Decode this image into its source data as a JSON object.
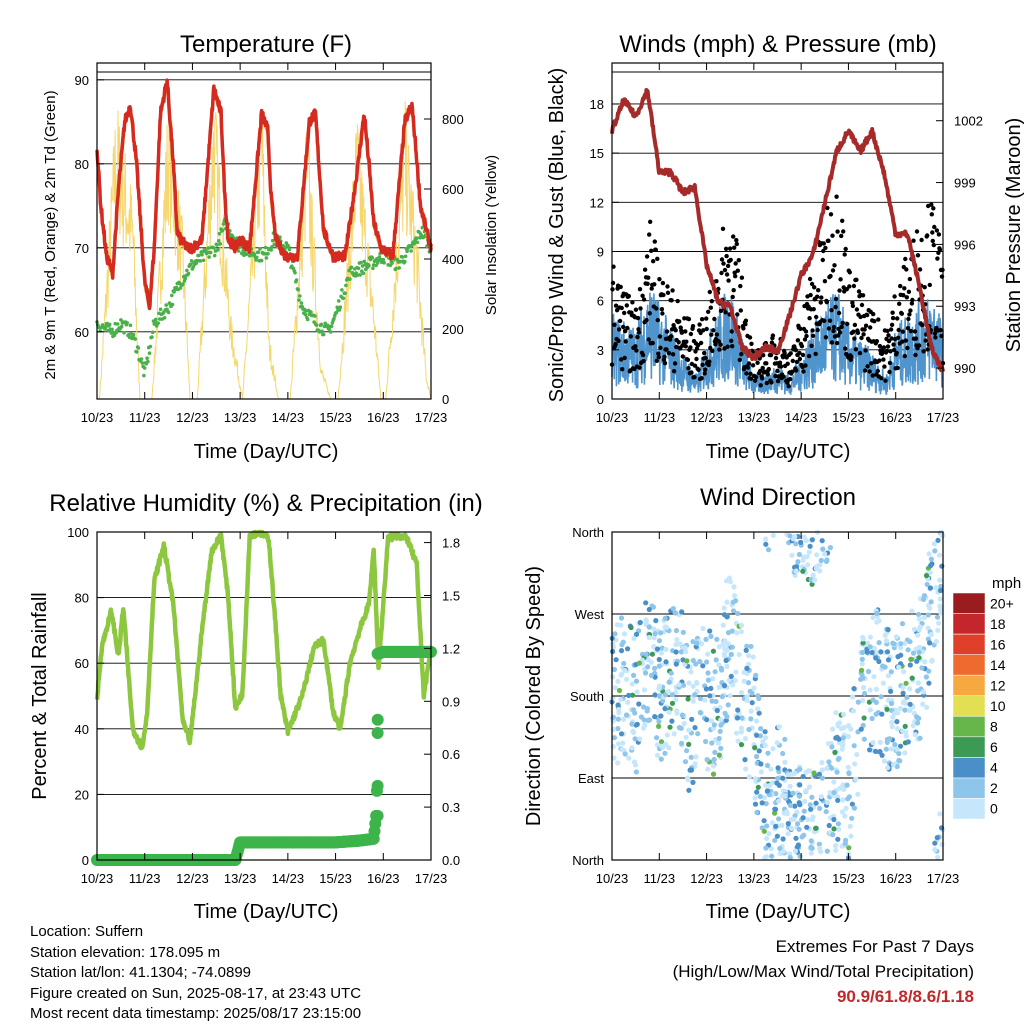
{
  "panels": {
    "temperature": {
      "title": "Temperature (F)",
      "ylabel": "2m & 9m T (Red, Orange) & 2m Td (Green)",
      "y2label": "Solar Insolation (Yellow)",
      "xlabel": "Time (Day/UTC)"
    },
    "winds": {
      "title": "Winds (mph) & Pressure (mb)",
      "ylabel": "Sonic/Prop Wind & Gust (Blue, Black)",
      "y2label": "Station Pressure (Maroon)",
      "xlabel": "Time (Day/UTC)"
    },
    "humidity": {
      "title": "Relative Humidity (%) & Precipitation (in)",
      "ylabel": "Percent & Total Rainfall",
      "xlabel": "Time (Day/UTC)"
    },
    "direction": {
      "title": "Wind Direction",
      "ylabel": "Direction (Colored By Speed)",
      "xlabel": "Time (Day/UTC)",
      "colorbar_title": "mph"
    }
  },
  "station": {
    "location": "Location: Suffern",
    "elevation": "Station elevation: 178.095 m",
    "latlon": "Station lat/lon: 41.1304; -74.0899",
    "created": "Figure created on Sun, 2025-08-17, at 23:43 UTC",
    "recent": "Most recent data timestamp: 2025/08/17 23:15:00"
  },
  "extremes": {
    "title": "Extremes For Past 7 Days",
    "subtitle": "(High/Low/Max Wind/Total Precipitation)",
    "values": "90.9/61.8/8.6/1.18"
  },
  "colors": {
    "temp_2m": "#d42a20",
    "temp_9m": "#f09a30",
    "dewpoint": "#4ab04a",
    "insolation": "#f5d76e",
    "wind": "#4f94cd",
    "gust": "#000000",
    "pressure": "#a52a2a",
    "rh": "#8dc63f",
    "precip": "#3cb44b"
  },
  "chart_data": [
    {
      "id": "temperature",
      "type": "line",
      "x_ticks": [
        "10/23",
        "11/23",
        "12/23",
        "13/23",
        "14/23",
        "15/23",
        "16/23",
        "17/23"
      ],
      "y_ticks": [
        60,
        70,
        80,
        90
      ],
      "ylim": [
        52,
        92
      ],
      "y2_ticks": [
        0,
        200,
        400,
        600,
        800
      ],
      "y2lim": [
        0,
        960
      ],
      "series": [
        {
          "key": "temp",
          "x": [
            0,
            0.08,
            0.2,
            0.33,
            0.45,
            0.58,
            0.7,
            0.83,
            0.95,
            1,
            1.1,
            1.2,
            1.33,
            1.47,
            1.6,
            1.68,
            1.75,
            1.9,
            2,
            2.2,
            2.45,
            2.6,
            2.68,
            2.75,
            2.9,
            3,
            3.2,
            3.45,
            3.58,
            3.65,
            3.75,
            3.95,
            4.2,
            4.45,
            4.58,
            4.65,
            4.75,
            4.95,
            5.2,
            5.45,
            5.6,
            5.7,
            5.8,
            5.95,
            6.2,
            6.45,
            6.6,
            6.68,
            6.78,
            6.95,
            7
          ],
          "y": [
            82,
            75,
            69,
            67,
            77,
            85,
            87,
            80,
            70,
            66,
            63,
            70,
            86,
            90,
            80,
            72,
            71,
            70,
            70,
            71,
            89,
            86,
            76,
            71,
            70,
            71,
            70,
            86,
            84,
            76,
            71,
            69,
            69,
            85,
            86,
            80,
            72,
            69,
            69,
            79,
            86,
            80,
            73,
            70,
            69,
            85,
            87,
            82,
            75,
            71,
            70
          ]
        },
        {
          "key": "dewpoint",
          "x": [
            0,
            0.3,
            0.5,
            0.7,
            0.85,
            1,
            1.2,
            1.5,
            1.75,
            2,
            2.5,
            2.7,
            3,
            3.5,
            3.7,
            4,
            4.3,
            4.6,
            4.85,
            5,
            5.3,
            5.7,
            6,
            6.3,
            6.6,
            6.8,
            7
          ],
          "y": [
            61,
            60,
            61,
            60,
            58,
            55,
            61,
            63,
            66,
            68,
            70,
            73,
            70,
            69,
            71,
            70,
            63,
            61,
            60,
            62,
            67,
            68,
            69,
            68,
            70,
            72,
            70
          ]
        },
        {
          "key": "insolation",
          "x": [
            0,
            0.05,
            0.4,
            0.75,
            0.9,
            1,
            1.15,
            1.5,
            1.8,
            1.95,
            2.1,
            2.45,
            2.8,
            3.05,
            3.45,
            3.6,
            3.8,
            4.05,
            4.4,
            4.7,
            4.9,
            5.05,
            5.45,
            5.8,
            5.95,
            6.05,
            6.45,
            6.7,
            6.9,
            7
          ],
          "y": [
            0,
            0,
            880,
            600,
            0,
            0,
            0,
            900,
            500,
            0,
            0,
            930,
            250,
            0,
            940,
            200,
            0,
            0,
            850,
            100,
            0,
            0,
            850,
            300,
            0,
            0,
            880,
            500,
            80,
            0
          ]
        }
      ]
    },
    {
      "id": "winds",
      "type": "scatter",
      "x_ticks": [
        "10/23",
        "11/23",
        "12/23",
        "13/23",
        "14/23",
        "15/23",
        "16/23",
        "17/23"
      ],
      "y_ticks": [
        0,
        3,
        6,
        9,
        12,
        15,
        18
      ],
      "ylim": [
        0,
        20.5
      ],
      "y2_ticks": [
        990,
        993,
        996,
        999,
        1002
      ],
      "y2lim": [
        988.5,
        1004.8
      ],
      "series": [
        {
          "key": "wind",
          "x": [
            0,
            0.5,
            0.8,
            1,
            1.5,
            1.8,
            2,
            2.5,
            2.7,
            3,
            3.5,
            3.8,
            4,
            4.5,
            4.8,
            5,
            5.5,
            5.8,
            6,
            6.5,
            6.8,
            7
          ],
          "y": [
            3.5,
            3,
            5,
            4,
            2,
            1,
            2.5,
            5,
            3,
            1,
            1.5,
            1,
            2,
            4,
            4.5,
            3,
            2,
            1,
            3,
            4,
            4.5,
            3
          ]
        },
        {
          "key": "gust",
          "x": [
            0,
            0.5,
            0.8,
            1,
            1.5,
            1.8,
            2,
            2.5,
            2.7,
            3,
            3.5,
            3.8,
            4,
            4.5,
            4.8,
            5,
            5.5,
            5.8,
            6,
            6.5,
            6.8,
            7
          ],
          "y": [
            6,
            4,
            8,
            6,
            4,
            3,
            4,
            9,
            6,
            2,
            3,
            2,
            4,
            8,
            10,
            6,
            4,
            3,
            5,
            8,
            9,
            6
          ]
        },
        {
          "key": "pressure",
          "x": [
            0,
            0.25,
            0.5,
            0.75,
            1,
            1.25,
            1.5,
            1.75,
            2,
            2.25,
            2.5,
            2.75,
            3,
            3.25,
            3.5,
            3.75,
            4,
            4.25,
            4.5,
            4.75,
            5,
            5.25,
            5.5,
            5.75,
            6,
            6.25,
            6.5,
            6.75,
            7
          ],
          "y": [
            1001.5,
            1003,
            1002.2,
            1003.5,
            999.5,
            999.5,
            998.5,
            998.8,
            995,
            993.2,
            993,
            991,
            990.5,
            991,
            990.8,
            992.5,
            994.5,
            995.5,
            998,
            1000.5,
            1001.5,
            1000.5,
            1001.5,
            999.5,
            996.5,
            996.5,
            994,
            991,
            989.8
          ]
        }
      ]
    },
    {
      "id": "humidity",
      "type": "line",
      "x_ticks": [
        "10/23",
        "11/23",
        "12/23",
        "13/23",
        "14/23",
        "15/23",
        "16/23",
        "17/23"
      ],
      "y_ticks": [
        0,
        20,
        40,
        60,
        80,
        100
      ],
      "ylim": [
        0,
        100
      ],
      "y2_ticks": [
        "0.0",
        "0.3",
        "0.6",
        "0.9",
        "1.2",
        "1.5",
        "1.8"
      ],
      "y2lim": [
        0,
        1.86
      ],
      "series": [
        {
          "key": "rh",
          "x": [
            0,
            0.1,
            0.3,
            0.45,
            0.55,
            0.75,
            0.95,
            1.05,
            1.2,
            1.4,
            1.6,
            1.8,
            1.95,
            2.2,
            2.4,
            2.6,
            2.75,
            2.9,
            3.05,
            3.2,
            3.4,
            3.6,
            3.75,
            3.85,
            4,
            4.3,
            4.55,
            4.75,
            4.95,
            5.1,
            5.3,
            5.5,
            5.7,
            5.8,
            5.9,
            6.1,
            6.3,
            6.5,
            6.7,
            6.85,
            7
          ],
          "y": [
            49,
            65,
            76,
            62,
            77,
            40,
            34,
            45,
            85,
            96,
            78,
            42,
            36,
            70,
            94,
            99,
            80,
            46,
            51,
            99,
            100,
            98,
            70,
            50,
            39,
            50,
            65,
            67,
            45,
            40,
            60,
            70,
            78,
            95,
            58,
            98,
            99,
            98,
            90,
            50,
            65
          ]
        },
        {
          "key": "precip",
          "x": [
            0,
            0.5,
            1,
            1.5,
            2,
            2.5,
            2.9,
            3,
            3.5,
            4,
            4.5,
            5,
            5.5,
            5.8,
            5.85,
            5.87,
            5.88,
            5.9,
            6,
            6.5,
            7
          ],
          "y": [
            0,
            0,
            0,
            0,
            0,
            0,
            0,
            0.1,
            0.1,
            0.1,
            0.1,
            0.1,
            0.11,
            0.12,
            0.25,
            0.42,
            0.72,
            1.17,
            1.18,
            1.18,
            1.18
          ]
        }
      ]
    },
    {
      "id": "direction",
      "type": "scatter",
      "x_ticks": [
        "10/23",
        "11/23",
        "12/23",
        "13/23",
        "14/23",
        "15/23",
        "16/23",
        "17/23"
      ],
      "y_ticks": [
        "North",
        "East",
        "South",
        "West",
        "North"
      ],
      "ylim": [
        0,
        360
      ],
      "colorbar": {
        "labels": [
          "0",
          "2",
          "4",
          "6",
          "8",
          "10",
          "12",
          "14",
          "16",
          "18",
          "20+"
        ],
        "colors": [
          "#c6e7fb",
          "#8ec5ea",
          "#4a8fc8",
          "#3d9a54",
          "#66b64a",
          "#e2df52",
          "#f6a841",
          "#ee6a2e",
          "#e04029",
          "#c3272b",
          "#9b1c1f"
        ]
      },
      "series": [
        {
          "key": "direction",
          "x": [
            0,
            0.3,
            0.5,
            0.7,
            0.9,
            1,
            1.2,
            1.4,
            1.6,
            1.8,
            2,
            2.2,
            2.5,
            2.7,
            2.9,
            3,
            3.3,
            3.6,
            3.8,
            4,
            4.3,
            4.6,
            4.8,
            5,
            5.3,
            5.6,
            5.8,
            6,
            6.3,
            6.6,
            6.8,
            7
          ],
          "y": [
            180,
            190,
            170,
            230,
            200,
            175,
            200,
            220,
            150,
            170,
            180,
            160,
            260,
            190,
            170,
            150,
            40,
            80,
            20,
            30,
            20,
            50,
            100,
            70,
            190,
            200,
            180,
            170,
            190,
            220,
            300,
            350
          ]
        }
      ]
    }
  ]
}
